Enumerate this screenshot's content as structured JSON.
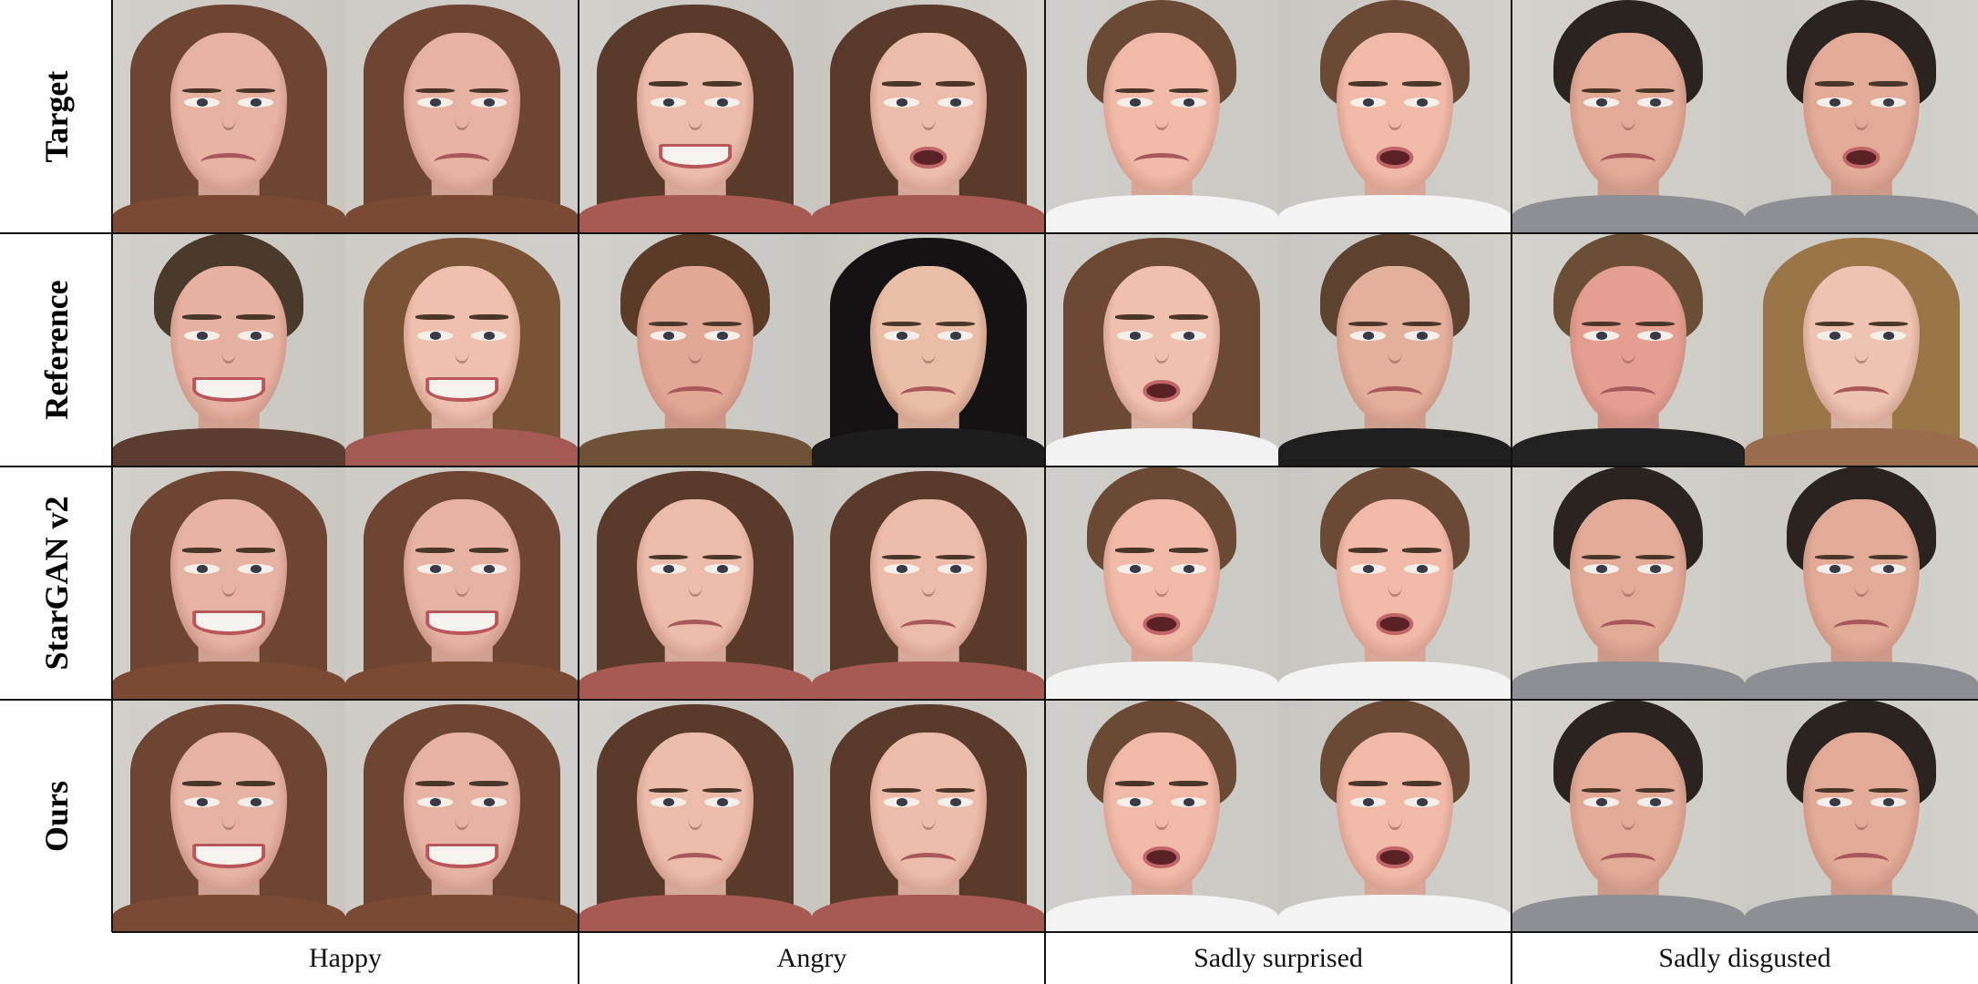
{
  "figure": {
    "row_labels": [
      "Target",
      "Reference",
      "StarGAN v2",
      "Ours"
    ],
    "column_labels": [
      "Happy",
      "Angry",
      "Sadly surprised",
      "Sadly disgusted"
    ]
  },
  "faces": [
    [
      "frown",
      "frown",
      "smile",
      "open",
      "frown",
      "open",
      "frown",
      "open"
    ],
    [
      "smile",
      "smile",
      "frown",
      "frown",
      "open",
      "frown",
      "frown",
      "frown"
    ],
    [
      "smile",
      "smile",
      "frown",
      "frown",
      "open",
      "open",
      "frown",
      "frown"
    ],
    [
      "smile",
      "smile",
      "frown",
      "frown",
      "open",
      "open",
      "frown",
      "frown"
    ]
  ],
  "colors": {
    "background_photo": "#d2d0cb",
    "border": "#111111",
    "skin_light": "#e8b6a6",
    "hair_brown": "#6e4532",
    "hair_dark": "#2a2320"
  }
}
